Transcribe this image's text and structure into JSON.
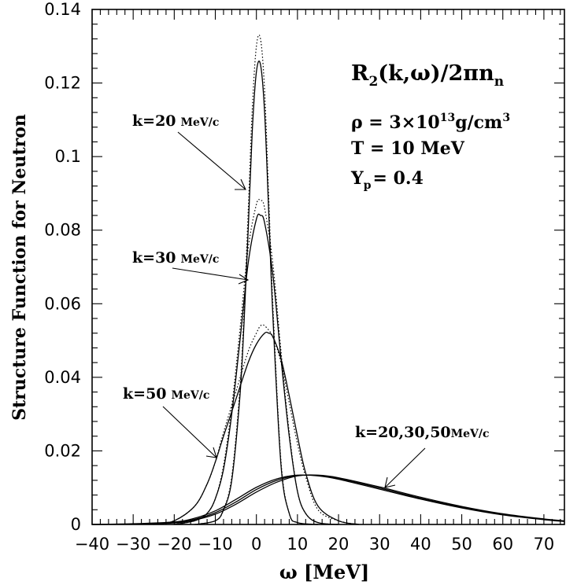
{
  "chart_data": {
    "type": "line",
    "title": "",
    "xlabel": "ω   [MeV]",
    "ylabel": "Structure Function for Neutron",
    "xlim": [
      -40,
      75
    ],
    "ylim": [
      0,
      0.14
    ],
    "x_ticks": [
      -40,
      -30,
      -20,
      -10,
      0,
      10,
      20,
      30,
      40,
      50,
      60,
      70
    ],
    "y_ticks": [
      0,
      0.02,
      0.04,
      0.06,
      0.08,
      0.1,
      0.12,
      0.14
    ],
    "y_tick_labels": [
      "0",
      "0.02",
      "0.04",
      "0.06",
      "0.08",
      "0.1",
      "0.12",
      "0.14"
    ],
    "grid": false,
    "legend": "none",
    "series": [
      {
        "style": "solid",
        "x": [
          -15,
          -10,
          -8,
          -6,
          -4,
          -3,
          -2,
          -1,
          0,
          1,
          2,
          3,
          4,
          6,
          8,
          10,
          15
        ],
        "y": [
          0,
          0.001,
          0.004,
          0.012,
          0.035,
          0.055,
          0.08,
          0.107,
          0.123,
          0.125,
          0.112,
          0.085,
          0.057,
          0.016,
          0.003,
          0.0005,
          0
        ]
      },
      {
        "style": "dotted",
        "x": [
          -15,
          -10,
          -8,
          -6,
          -4,
          -3,
          -2,
          -1,
          0,
          1,
          2,
          3,
          4,
          6,
          8,
          10,
          15
        ],
        "y": [
          0,
          0.001,
          0.004,
          0.013,
          0.037,
          0.058,
          0.085,
          0.113,
          0.13,
          0.132,
          0.118,
          0.089,
          0.06,
          0.017,
          0.003,
          0.0005,
          0
        ]
      },
      {
        "style": "solid",
        "x": [
          -20,
          -15,
          -12,
          -10,
          -8,
          -6,
          -4,
          -2,
          0,
          1,
          2,
          4,
          6,
          8,
          10,
          12,
          15,
          20
        ],
        "y": [
          0,
          0.001,
          0.003,
          0.007,
          0.015,
          0.03,
          0.05,
          0.071,
          0.083,
          0.084,
          0.082,
          0.068,
          0.045,
          0.024,
          0.009,
          0.003,
          0.0005,
          0
        ]
      },
      {
        "style": "dotted",
        "x": [
          -20,
          -15,
          -12,
          -10,
          -8,
          -6,
          -4,
          -2,
          0,
          1,
          2,
          4,
          6,
          8,
          10,
          12,
          15,
          20
        ],
        "y": [
          0,
          0.001,
          0.003,
          0.007,
          0.016,
          0.032,
          0.053,
          0.075,
          0.087,
          0.088,
          0.086,
          0.071,
          0.047,
          0.025,
          0.009,
          0.003,
          0.0005,
          0
        ]
      },
      {
        "style": "solid",
        "x": [
          -25,
          -20,
          -15,
          -12,
          -10,
          -8,
          -5,
          -2,
          0,
          2,
          3,
          4,
          6,
          8,
          10,
          12,
          15,
          20,
          25
        ],
        "y": [
          0,
          0.001,
          0.005,
          0.011,
          0.017,
          0.024,
          0.034,
          0.044,
          0.049,
          0.052,
          0.052,
          0.051,
          0.045,
          0.035,
          0.024,
          0.014,
          0.005,
          0.001,
          0
        ]
      },
      {
        "style": "dotted",
        "x": [
          -25,
          -20,
          -15,
          -12,
          -10,
          -8,
          -5,
          -2,
          0,
          1,
          2,
          4,
          6,
          8,
          10,
          12,
          15,
          20,
          25
        ],
        "y": [
          0,
          0.001,
          0.005,
          0.011,
          0.017,
          0.025,
          0.036,
          0.047,
          0.052,
          0.054,
          0.054,
          0.051,
          0.044,
          0.033,
          0.022,
          0.013,
          0.004,
          0.001,
          0
        ]
      },
      {
        "style": "solid",
        "x": [
          -40,
          -30,
          -20,
          -15,
          -10,
          -5,
          0,
          5,
          10,
          15,
          20,
          30,
          40,
          50,
          60,
          70,
          75
        ],
        "y": [
          0,
          0.0001,
          0.0004,
          0.0012,
          0.0028,
          0.0055,
          0.0088,
          0.0115,
          0.0132,
          0.0134,
          0.0127,
          0.0102,
          0.0074,
          0.0049,
          0.0029,
          0.0015,
          0.001
        ]
      },
      {
        "style": "solid",
        "x": [
          -40,
          -30,
          -20,
          -15,
          -10,
          -5,
          0,
          5,
          10,
          15,
          20,
          30,
          40,
          50,
          60,
          70,
          75
        ],
        "y": [
          0,
          0.0001,
          0.0005,
          0.0014,
          0.0032,
          0.0061,
          0.0095,
          0.012,
          0.0133,
          0.0133,
          0.0125,
          0.0099,
          0.0071,
          0.0047,
          0.0028,
          0.0014,
          0.0009
        ]
      },
      {
        "style": "solid",
        "x": [
          -40,
          -30,
          -20,
          -15,
          -10,
          -5,
          0,
          5,
          10,
          15,
          20,
          30,
          40,
          50,
          60,
          70,
          75
        ],
        "y": [
          0,
          0.0002,
          0.0007,
          0.0017,
          0.0037,
          0.0068,
          0.0101,
          0.0124,
          0.0134,
          0.0132,
          0.0123,
          0.0096,
          0.0069,
          0.0045,
          0.0026,
          0.0013,
          0.0008
        ]
      }
    ],
    "annotations": {
      "formula_main": "R",
      "formula_sub": "2",
      "formula_rest": "(k,ω)/2πn",
      "formula_sub2": "n",
      "rho_label": "ρ  =  3×10",
      "rho_exp": "13",
      "rho_unit": "g/cm",
      "rho_unit_exp": "3",
      "temp_label": "T  =  10  MeV",
      "yp_label": "Y",
      "yp_sub": "p",
      "yp_value": "=  0.4",
      "k20_label": "k=20",
      "k30_label": "k=30",
      "k50_label": "k=50",
      "unit_label": "MeV/c",
      "kall_label": "k=20,30,50",
      "kall_unit": "MeV/c"
    }
  }
}
